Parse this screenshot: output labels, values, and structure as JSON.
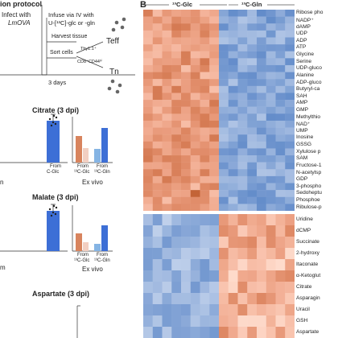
{
  "left": {
    "protocol_title": "ion protocol",
    "infect_line1": "Infect with",
    "infect_line2": "LmOVA",
    "infuse_line1": "Infuse via IV with",
    "infuse_line2": "U-[¹³C]-glc or -gln",
    "harvest": "Harvest tissue",
    "sort": "Sort cells",
    "thy": "Thy1.1⁺",
    "cd8": "CD8⁺CD44ʰⁱ",
    "teff": "Teff",
    "tn": "Tn",
    "days": "3 days",
    "citrate_title": "Citrate (3 dpi)",
    "malate_title": "Malate (3 dpi)",
    "aspartate_title": "Aspartate (3 dpi)",
    "from": "From",
    "c_glc": "¹³C-Glc",
    "c_gln": "¹³C-Gln",
    "ex_vivo": "Ex vivo",
    "frag_glc": "C-Glc",
    "frag_n": "n",
    "frag_m": "m"
  },
  "right": {
    "panel_letter": "B",
    "col_glc": "¹³C-Glc",
    "col_gln": "¹³C-Gln",
    "rows_top": [
      "Ribose pho",
      "NADP⁺",
      "dAMP",
      "UDP",
      "ADP",
      "ATP",
      "Glycine",
      "Serine",
      "UDP-gluco",
      "Alanine",
      "ADP-gluco",
      "Butyryl-ca",
      "SAH",
      "AMP",
      "GMP",
      "Methylthio",
      "NAD⁺",
      "UMP",
      "Inosine",
      "GSSG",
      "Xylulose p",
      "SAM",
      "Fructose-1",
      "N-acetylsp",
      "GDP",
      "3-phospho",
      "Sedoheptu",
      "Phosphoe",
      "Ribulose-p"
    ],
    "rows_bottom": [
      "Uridine",
      "dCMP",
      "Succinate",
      "2-hydroxy",
      "Itaconate",
      "α-Ketoglut",
      "Citrate",
      "Asparagin",
      "Uracil",
      "GSH",
      "Aspartate"
    ]
  },
  "chart_data": [
    {
      "type": "bar",
      "title": "Citrate (3 dpi)",
      "categories": [
        "From ¹³C-Glc",
        "From ¹³C-Gln"
      ],
      "series": [
        {
          "values": [
            null,
            0.9
          ]
        }
      ]
    },
    {
      "type": "bar",
      "title": "Citrate (3 dpi)",
      "xlabel": "Ex vivo",
      "categories": [
        "From ¹³C-Glc",
        "From ¹³C-Gln"
      ],
      "series": [
        {
          "values": [
            0.55,
            0.3
          ]
        },
        {
          "values": [
            0.25,
            0.72
          ]
        }
      ]
    },
    {
      "type": "bar",
      "title": "Malate (3 dpi)",
      "categories": [
        "From ¹³C-Glc",
        "From ¹³C-Gln"
      ],
      "series": [
        {
          "values": [
            null,
            0.9
          ]
        }
      ]
    },
    {
      "type": "bar",
      "title": "Malate (3 dpi)",
      "xlabel": "Ex vivo",
      "categories": [
        "From ¹³C-Glc",
        "From ¹³C-Gln"
      ],
      "series": [
        {
          "values": [
            0.45,
            0.22
          ]
        },
        {
          "values": [
            0.15,
            0.62
          ]
        }
      ]
    }
  ],
  "colors": {
    "orange": "#d8845e",
    "blue_dark": "#3d6fd6",
    "blue_light": "#85b4e4",
    "heat_red": "#c0392b",
    "heat_blue": "#2f6db0"
  }
}
